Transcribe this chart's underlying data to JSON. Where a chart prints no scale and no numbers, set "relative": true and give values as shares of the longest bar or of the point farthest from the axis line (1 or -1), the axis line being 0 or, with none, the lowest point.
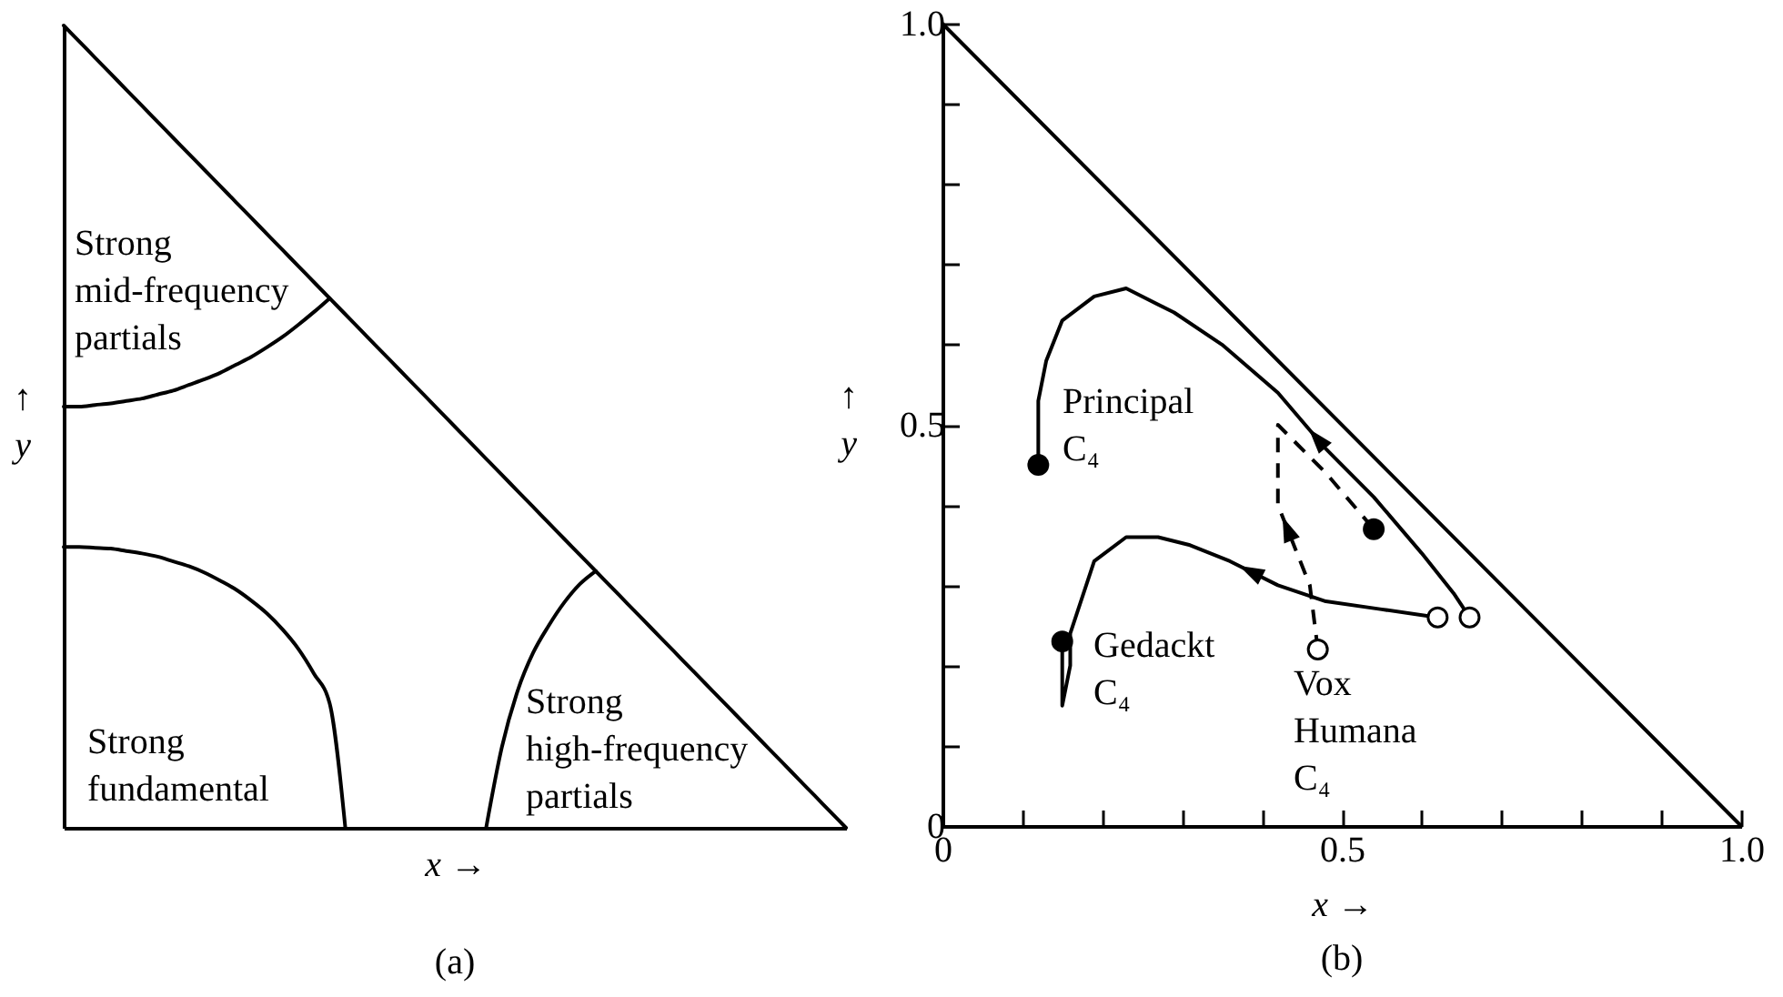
{
  "chart_data": [
    {
      "type": "line",
      "title": "(a)",
      "xlabel": "x →",
      "ylabel": "↑\ny",
      "relative": true,
      "categories": [
        null,
        null,
        null,
        null,
        null,
        null,
        null,
        null,
        null,
        null,
        null,
        null,
        null,
        null,
        null,
        null,
        null,
        null,
        null,
        null,
        null,
        null,
        null,
        null,
        null,
        null,
        null,
        null,
        null,
        null,
        null,
        null,
        null,
        null,
        null,
        null,
        null,
        null,
        null,
        null,
        null,
        null,
        null,
        null,
        null,
        null,
        null,
        null,
        null,
        null,
        null
      ],
      "series": [
        {
          "color": "#000000",
          "values": [
            1,
            0.98,
            0.96,
            0.94,
            0.92,
            0.9,
            0.88,
            0.86,
            0.84,
            0.82,
            0.8,
            0.78,
            0.76,
            0.74,
            0.72,
            0.7,
            0.68,
            0.66,
            0.64,
            0.62,
            0.6,
            0.58,
            0.56,
            0.54,
            0.52,
            0.5,
            0.48,
            0.46,
            0.44,
            0.42,
            0.4,
            0.38,
            0.36,
            0.34,
            0.32,
            0.3,
            0.28,
            0.26,
            0.24,
            0.22,
            0.2,
            0.18,
            0.16,
            0.14,
            0.12,
            0.1,
            0.08,
            0.06,
            0.04,
            0.02,
            0
          ]
        },
        {
          "color": "#000000",
          "values": [
            0.525,
            0.525,
            0.527,
            0.529,
            0.532,
            0.535,
            0.54,
            0.545,
            0.552,
            0.559,
            0.567,
            0.577,
            0.587,
            0.599,
            0.612,
            0.627,
            0.643,
            0.66,
            null,
            null,
            null,
            null,
            null,
            null,
            null,
            null,
            null,
            null,
            null,
            null,
            null,
            null,
            null,
            null,
            null,
            null,
            null,
            null,
            null,
            null,
            null,
            null,
            null,
            null,
            null,
            null,
            null,
            null,
            null,
            null,
            null
          ]
        },
        {
          "color": "#000000",
          "values": [
            0.35,
            0.35,
            0.349,
            0.348,
            0.345,
            0.342,
            0.338,
            0.332,
            0.326,
            0.318,
            0.308,
            0.297,
            0.283,
            0.267,
            0.247,
            0.223,
            0.192,
            0.155,
            0,
            null,
            null,
            null,
            null,
            null,
            null,
            null,
            null,
            null,
            null,
            null,
            null,
            null,
            null,
            null,
            null,
            null,
            null,
            null,
            null,
            null,
            null,
            null,
            null,
            null,
            null,
            null,
            null,
            null,
            null,
            null,
            null
          ]
        },
        {
          "color": "#000000",
          "values": [
            null,
            null,
            null,
            null,
            null,
            null,
            null,
            null,
            null,
            null,
            null,
            null,
            null,
            null,
            null,
            null,
            null,
            null,
            null,
            null,
            null,
            null,
            null,
            null,
            null,
            null,
            null,
            0,
            0.1,
            0.17,
            0.218,
            0.252,
            0.281,
            0.304,
            0.32,
            null,
            null,
            null,
            null,
            null,
            null,
            null,
            null,
            null,
            null,
            null,
            null,
            null,
            null,
            null,
            null
          ]
        }
      ],
      "annotations": [
        "Strong\nmid-frequency\npartials",
        "Strong\nfundamental",
        "Strong\nhigh-frequency\npartials"
      ]
    },
    {
      "type": "line",
      "title": "(b)",
      "xlabel": "x →",
      "ylabel": "↑\ny",
      "xlim": [
        0,
        1
      ],
      "ylim": [
        0,
        1
      ],
      "xticks": [
        0,
        {
          "value": 0.1,
          "label": null
        },
        {
          "value": 0.2,
          "label": null
        },
        {
          "value": 0.3,
          "label": null
        },
        {
          "value": 0.4,
          "label": null
        },
        0.5,
        {
          "value": 0.6,
          "label": null
        },
        {
          "value": 0.7,
          "label": null
        },
        {
          "value": 0.8,
          "label": null
        },
        {
          "value": 0.9,
          "label": null
        },
        {
          "value": 1,
          "label": "1.0"
        }
      ],
      "yticks": [
        0,
        {
          "value": 0.1,
          "label": null
        },
        {
          "value": 0.2,
          "label": null
        },
        {
          "value": 0.3,
          "label": null
        },
        {
          "value": 0.4,
          "label": null
        },
        0.5,
        {
          "value": 0.6,
          "label": null
        },
        {
          "value": 0.7,
          "label": null
        },
        {
          "value": 0.8,
          "label": null
        },
        {
          "value": 0.9,
          "label": null
        },
        {
          "value": 1,
          "label": "1.0"
        }
      ],
      "series": [
        {
          "color": "#000000",
          "x": [
            0,
            1
          ],
          "values": [
            1,
            0
          ]
        },
        {
          "color": "#000000",
          "x": [
            0.66,
            0.64,
            0.6,
            0.54,
            0.48,
            0.42,
            0.35,
            0.29,
            0.23,
            0.19,
            0.15,
            0.13,
            0.12,
            0.12,
            0.12
          ],
          "values": [
            0.26,
            0.29,
            0.34,
            0.41,
            0.47,
            0.54,
            0.6,
            0.64,
            0.67,
            0.66,
            0.63,
            0.58,
            0.53,
            0.47,
            0.45
          ]
        },
        {
          "color": "#000000",
          "x": [
            0.62,
            0.55,
            0.48,
            0.42,
            0.36,
            0.31,
            0.27,
            0.23,
            0.19,
            0.18,
            0.16,
            0.16,
            0.15,
            0.15,
            0.15
          ],
          "values": [
            0.26,
            0.27,
            0.28,
            0.3,
            0.33,
            0.35,
            0.36,
            0.36,
            0.33,
            0.3,
            0.24,
            0.2,
            0.15,
            0.18,
            0.23
          ]
        },
        {
          "color": "#000000",
          "line_style": "dashed",
          "x": [
            0.47,
            0.46,
            0.42,
            0.42,
            0.48,
            0.54
          ],
          "values": [
            0.22,
            0.3,
            0.4,
            0.5,
            0.44,
            0.37
          ]
        },
        {
          "type": "scatter",
          "marker": "circle",
          "color": "#ffffff",
          "x": [
            0.66,
            0.62,
            0.47
          ],
          "values": [
            0.26,
            0.26,
            0.22
          ]
        },
        {
          "type": "scatter",
          "marker": "circle",
          "color": "#000000",
          "x": [
            0.12,
            0.15,
            0.54
          ],
          "values": [
            0.45,
            0.23,
            0.37
          ]
        }
      ],
      "annotations": [
        "Principal\nC₄",
        "Gedackt\nC₄",
        "Vox\nHumana\nC₄"
      ]
    }
  ]
}
